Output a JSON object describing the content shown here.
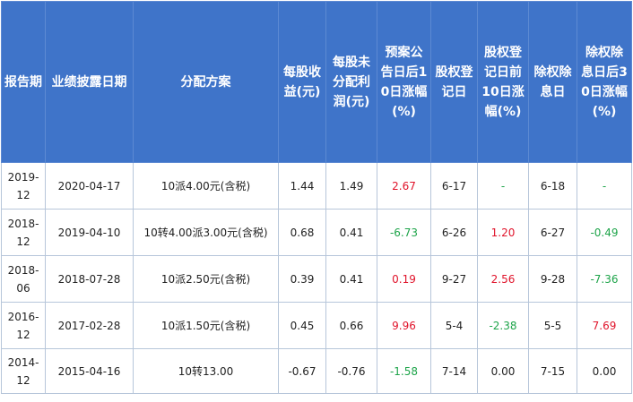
{
  "table": {
    "headers": [
      "报告期",
      "业绩披露日期",
      "分配方案",
      "每股收益(元)",
      "每股未分配利润(元)",
      "预案公告日后10日涨幅(%)",
      "股权登记日",
      "股权登记日前10日涨幅(%)",
      "除权除息日",
      "除权除息日后30日涨幅(%)"
    ],
    "rows": [
      {
        "period": "2019-12",
        "disclosure_date": "2020-04-17",
        "plan": "10派4.00元(含税)",
        "eps": "1.44",
        "undistributed": "1.49",
        "after_plan_10d": "2.67",
        "record_date": "6-17",
        "before_record_10d": "-",
        "exdiv_date": "6-18",
        "after_exdiv_30d": "-"
      },
      {
        "period": "2018-12",
        "disclosure_date": "2019-04-10",
        "plan": "10转4.00派3.00元(含税)",
        "eps": "0.68",
        "undistributed": "0.41",
        "after_plan_10d": "-6.73",
        "record_date": "6-26",
        "before_record_10d": "1.20",
        "exdiv_date": "6-27",
        "after_exdiv_30d": "-0.49"
      },
      {
        "period": "2018-06",
        "disclosure_date": "2018-07-28",
        "plan": "10派2.50元(含税)",
        "eps": "0.39",
        "undistributed": "0.41",
        "after_plan_10d": "0.19",
        "record_date": "9-27",
        "before_record_10d": "2.56",
        "exdiv_date": "9-28",
        "after_exdiv_30d": "-7.36"
      },
      {
        "period": "2016-12",
        "disclosure_date": "2017-02-28",
        "plan": "10派1.50元(含税)",
        "eps": "0.45",
        "undistributed": "0.66",
        "after_plan_10d": "9.96",
        "record_date": "5-4",
        "before_record_10d": "-2.38",
        "exdiv_date": "5-5",
        "after_exdiv_30d": "7.69"
      },
      {
        "period": "2014-12",
        "disclosure_date": "2015-04-16",
        "plan": "10转13.00",
        "eps": "-0.67",
        "undistributed": "-0.76",
        "after_plan_10d": "-1.58",
        "record_date": "7-14",
        "before_record_10d": "0.00",
        "exdiv_date": "7-15",
        "after_exdiv_30d": "0.00"
      }
    ],
    "colors": {
      "header_bg": "#3f74c9",
      "positive": "#e0142b",
      "negative": "#1ea44a",
      "neutral": "#222222"
    }
  }
}
